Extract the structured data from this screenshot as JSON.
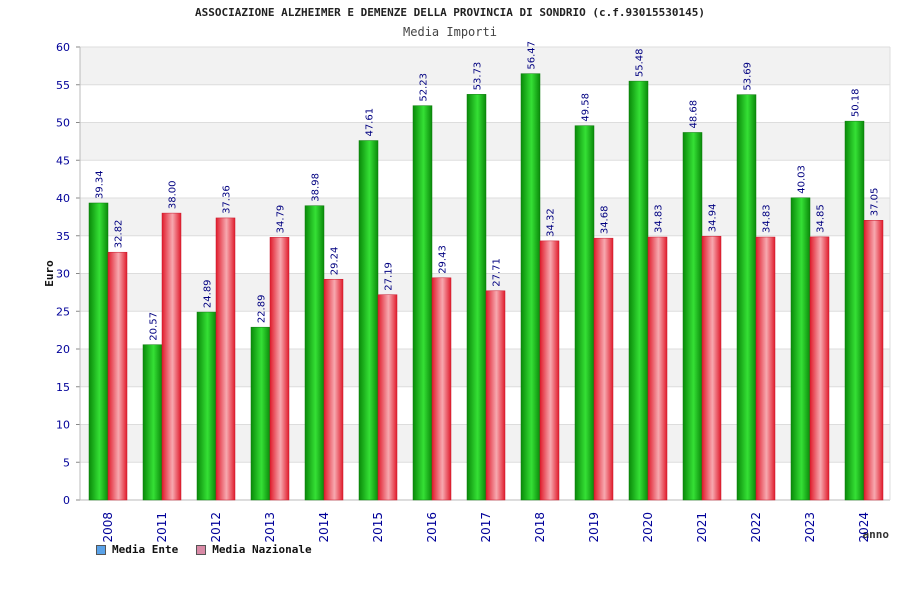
{
  "colors": {
    "ente_bar": "#19c219",
    "nazionale_bar": "#ee3a4a",
    "legend_ente": "#5aa2e8",
    "legend_nazionale": "#d98aa6",
    "axis_text": "#000099",
    "value_text": "#000080",
    "band": "#f2f2f2"
  },
  "legend": [
    {
      "label": "Media Ente",
      "color": "#5aa2e8"
    },
    {
      "label": "Media Nazionale",
      "color": "#d98aa6"
    }
  ],
  "chart_data": {
    "type": "bar",
    "title": "ASSOCIAZIONE ALZHEIMER E DEMENZE DELLA PROVINCIA DI SONDRIO (c.f.93015530145)",
    "subtitle": "Media Importi",
    "xlabel": "anno",
    "ylabel": "Euro",
    "ylim": [
      0,
      60
    ],
    "yticks": [
      0,
      5,
      10,
      15,
      20,
      25,
      30,
      35,
      40,
      45,
      50,
      55,
      60
    ],
    "categories": [
      "2008",
      "2011",
      "2012",
      "2013",
      "2014",
      "2015",
      "2016",
      "2017",
      "2018",
      "2019",
      "2020",
      "2021",
      "2022",
      "2023",
      "2024"
    ],
    "series": [
      {
        "name": "Media Ente",
        "values": [
          39.34,
          20.57,
          24.89,
          22.89,
          38.98,
          47.61,
          52.23,
          53.73,
          56.47,
          49.58,
          55.48,
          48.68,
          53.69,
          40.03,
          50.18
        ],
        "labels": [
          "39.34",
          "20.57",
          "24.89",
          "22.89",
          "38.98",
          "47.61",
          "52.23",
          "53.73",
          "56.47",
          "49.58",
          "55.48",
          "48.68",
          "53.69",
          "40.03",
          "50.18"
        ]
      },
      {
        "name": "Media Nazionale",
        "values": [
          32.82,
          38.0,
          37.36,
          34.79,
          29.24,
          27.19,
          29.43,
          27.71,
          34.32,
          34.68,
          34.83,
          34.94,
          34.83,
          34.85,
          37.05
        ],
        "labels": [
          "32.82",
          "38.00",
          "37.36",
          "34.79",
          "29.24",
          "27.19",
          "29.43",
          "27.71",
          "34.32",
          "34.68",
          "34.83",
          "34.94",
          "34.83",
          "34.85",
          "37.05"
        ]
      }
    ],
    "grid": true,
    "legend_position": "bottom-left"
  }
}
